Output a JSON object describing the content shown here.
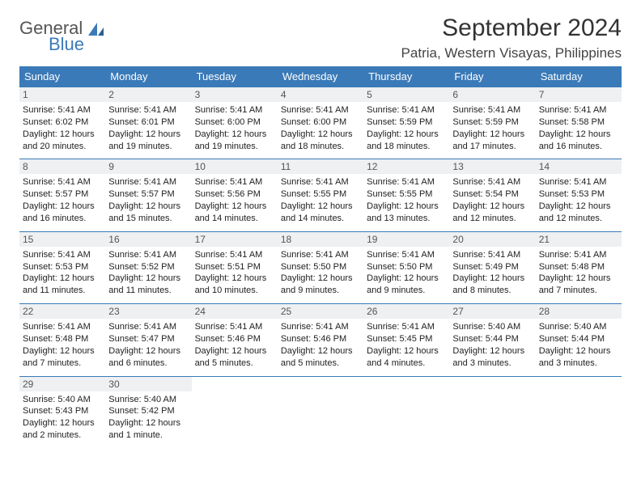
{
  "logo": {
    "word1": "General",
    "word2": "Blue"
  },
  "header": {
    "title": "September 2024",
    "location": "Patria, Western Visayas, Philippines"
  },
  "colors": {
    "accent": "#3a7ab8",
    "daynum_bg": "#eef0f1",
    "text": "#222222",
    "bg": "#ffffff"
  },
  "daynames": [
    "Sunday",
    "Monday",
    "Tuesday",
    "Wednesday",
    "Thursday",
    "Friday",
    "Saturday"
  ],
  "weeks": [
    [
      {
        "n": "1",
        "sr": "Sunrise: 5:41 AM",
        "ss": "Sunset: 6:02 PM",
        "d1": "Daylight: 12 hours",
        "d2": "and 20 minutes."
      },
      {
        "n": "2",
        "sr": "Sunrise: 5:41 AM",
        "ss": "Sunset: 6:01 PM",
        "d1": "Daylight: 12 hours",
        "d2": "and 19 minutes."
      },
      {
        "n": "3",
        "sr": "Sunrise: 5:41 AM",
        "ss": "Sunset: 6:00 PM",
        "d1": "Daylight: 12 hours",
        "d2": "and 19 minutes."
      },
      {
        "n": "4",
        "sr": "Sunrise: 5:41 AM",
        "ss": "Sunset: 6:00 PM",
        "d1": "Daylight: 12 hours",
        "d2": "and 18 minutes."
      },
      {
        "n": "5",
        "sr": "Sunrise: 5:41 AM",
        "ss": "Sunset: 5:59 PM",
        "d1": "Daylight: 12 hours",
        "d2": "and 18 minutes."
      },
      {
        "n": "6",
        "sr": "Sunrise: 5:41 AM",
        "ss": "Sunset: 5:59 PM",
        "d1": "Daylight: 12 hours",
        "d2": "and 17 minutes."
      },
      {
        "n": "7",
        "sr": "Sunrise: 5:41 AM",
        "ss": "Sunset: 5:58 PM",
        "d1": "Daylight: 12 hours",
        "d2": "and 16 minutes."
      }
    ],
    [
      {
        "n": "8",
        "sr": "Sunrise: 5:41 AM",
        "ss": "Sunset: 5:57 PM",
        "d1": "Daylight: 12 hours",
        "d2": "and 16 minutes."
      },
      {
        "n": "9",
        "sr": "Sunrise: 5:41 AM",
        "ss": "Sunset: 5:57 PM",
        "d1": "Daylight: 12 hours",
        "d2": "and 15 minutes."
      },
      {
        "n": "10",
        "sr": "Sunrise: 5:41 AM",
        "ss": "Sunset: 5:56 PM",
        "d1": "Daylight: 12 hours",
        "d2": "and 14 minutes."
      },
      {
        "n": "11",
        "sr": "Sunrise: 5:41 AM",
        "ss": "Sunset: 5:55 PM",
        "d1": "Daylight: 12 hours",
        "d2": "and 14 minutes."
      },
      {
        "n": "12",
        "sr": "Sunrise: 5:41 AM",
        "ss": "Sunset: 5:55 PM",
        "d1": "Daylight: 12 hours",
        "d2": "and 13 minutes."
      },
      {
        "n": "13",
        "sr": "Sunrise: 5:41 AM",
        "ss": "Sunset: 5:54 PM",
        "d1": "Daylight: 12 hours",
        "d2": "and 12 minutes."
      },
      {
        "n": "14",
        "sr": "Sunrise: 5:41 AM",
        "ss": "Sunset: 5:53 PM",
        "d1": "Daylight: 12 hours",
        "d2": "and 12 minutes."
      }
    ],
    [
      {
        "n": "15",
        "sr": "Sunrise: 5:41 AM",
        "ss": "Sunset: 5:53 PM",
        "d1": "Daylight: 12 hours",
        "d2": "and 11 minutes."
      },
      {
        "n": "16",
        "sr": "Sunrise: 5:41 AM",
        "ss": "Sunset: 5:52 PM",
        "d1": "Daylight: 12 hours",
        "d2": "and 11 minutes."
      },
      {
        "n": "17",
        "sr": "Sunrise: 5:41 AM",
        "ss": "Sunset: 5:51 PM",
        "d1": "Daylight: 12 hours",
        "d2": "and 10 minutes."
      },
      {
        "n": "18",
        "sr": "Sunrise: 5:41 AM",
        "ss": "Sunset: 5:50 PM",
        "d1": "Daylight: 12 hours",
        "d2": "and 9 minutes."
      },
      {
        "n": "19",
        "sr": "Sunrise: 5:41 AM",
        "ss": "Sunset: 5:50 PM",
        "d1": "Daylight: 12 hours",
        "d2": "and 9 minutes."
      },
      {
        "n": "20",
        "sr": "Sunrise: 5:41 AM",
        "ss": "Sunset: 5:49 PM",
        "d1": "Daylight: 12 hours",
        "d2": "and 8 minutes."
      },
      {
        "n": "21",
        "sr": "Sunrise: 5:41 AM",
        "ss": "Sunset: 5:48 PM",
        "d1": "Daylight: 12 hours",
        "d2": "and 7 minutes."
      }
    ],
    [
      {
        "n": "22",
        "sr": "Sunrise: 5:41 AM",
        "ss": "Sunset: 5:48 PM",
        "d1": "Daylight: 12 hours",
        "d2": "and 7 minutes."
      },
      {
        "n": "23",
        "sr": "Sunrise: 5:41 AM",
        "ss": "Sunset: 5:47 PM",
        "d1": "Daylight: 12 hours",
        "d2": "and 6 minutes."
      },
      {
        "n": "24",
        "sr": "Sunrise: 5:41 AM",
        "ss": "Sunset: 5:46 PM",
        "d1": "Daylight: 12 hours",
        "d2": "and 5 minutes."
      },
      {
        "n": "25",
        "sr": "Sunrise: 5:41 AM",
        "ss": "Sunset: 5:46 PM",
        "d1": "Daylight: 12 hours",
        "d2": "and 5 minutes."
      },
      {
        "n": "26",
        "sr": "Sunrise: 5:41 AM",
        "ss": "Sunset: 5:45 PM",
        "d1": "Daylight: 12 hours",
        "d2": "and 4 minutes."
      },
      {
        "n": "27",
        "sr": "Sunrise: 5:40 AM",
        "ss": "Sunset: 5:44 PM",
        "d1": "Daylight: 12 hours",
        "d2": "and 3 minutes."
      },
      {
        "n": "28",
        "sr": "Sunrise: 5:40 AM",
        "ss": "Sunset: 5:44 PM",
        "d1": "Daylight: 12 hours",
        "d2": "and 3 minutes."
      }
    ],
    [
      {
        "n": "29",
        "sr": "Sunrise: 5:40 AM",
        "ss": "Sunset: 5:43 PM",
        "d1": "Daylight: 12 hours",
        "d2": "and 2 minutes."
      },
      {
        "n": "30",
        "sr": "Sunrise: 5:40 AM",
        "ss": "Sunset: 5:42 PM",
        "d1": "Daylight: 12 hours",
        "d2": "and 1 minute."
      },
      {
        "empty": true
      },
      {
        "empty": true
      },
      {
        "empty": true
      },
      {
        "empty": true
      },
      {
        "empty": true
      }
    ]
  ]
}
